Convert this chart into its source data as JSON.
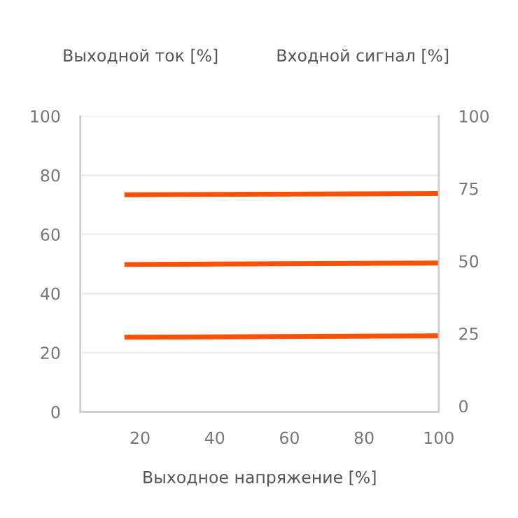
{
  "chart_data": {
    "type": "line",
    "xlabel": "Выходное напряжение [%]",
    "ylabel": "Выходной ток [%]",
    "y2label": "Входной сигнал [%]",
    "x": [
      16.5,
      100
    ],
    "series": [
      {
        "color": "#ff5000",
        "values": [
          73.4,
          73.8
        ]
      },
      {
        "color": "#ff5000",
        "values": [
          49.8,
          50.3
        ]
      },
      {
        "color": "#ff5000",
        "values": [
          25.2,
          25.7
        ]
      }
    ],
    "xlim": [
      4,
      100
    ],
    "xticks": [
      20,
      40,
      60,
      80,
      100
    ],
    "ylim": [
      0,
      100
    ],
    "yticks": [
      0,
      20,
      40,
      60,
      80,
      100
    ],
    "y2lim": [
      -2,
      100
    ],
    "y2ticks": [
      0,
      25,
      50,
      75,
      100
    ],
    "grid": "y",
    "marker": "none",
    "line_style": "solid"
  }
}
